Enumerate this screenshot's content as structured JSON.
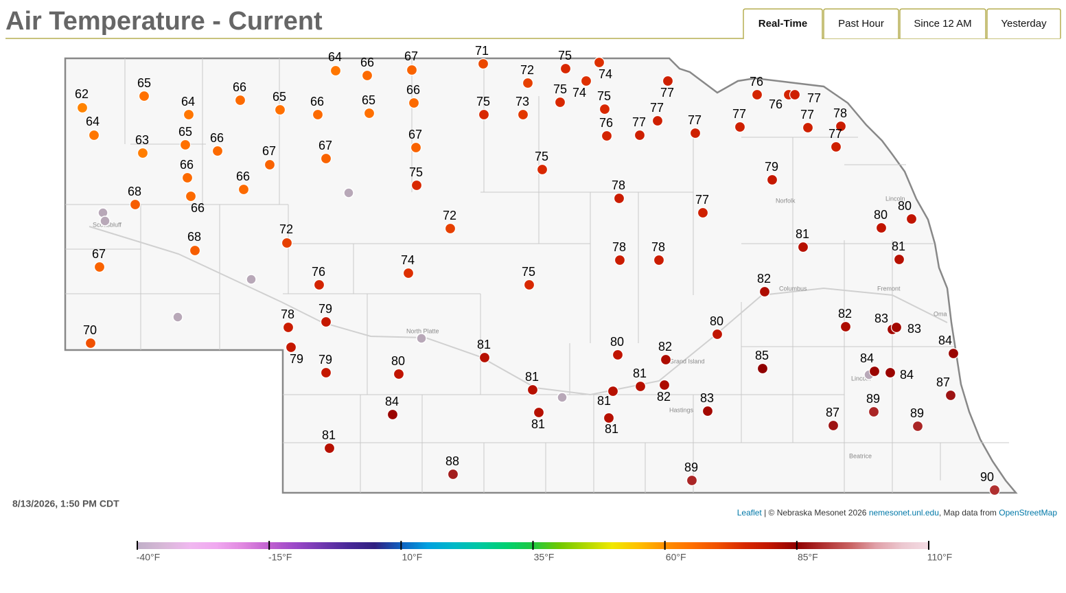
{
  "header": {
    "title": "Air Temperature - Current",
    "tabs": [
      "Real-Time",
      "Past Hour",
      "Since 12 AM",
      "Yesterday"
    ],
    "active_tab": 0
  },
  "map": {
    "values": [
      62,
      65,
      64,
      64,
      63,
      65,
      66,
      66,
      66,
      66,
      66,
      65,
      66,
      64,
      66,
      67,
      65,
      66,
      67,
      67,
      67,
      68,
      68,
      67,
      70,
      72,
      76,
      75,
      72,
      74,
      78,
      79,
      79,
      79,
      80,
      71,
      72,
      75,
      74,
      75,
      74,
      75,
      73,
      75,
      76,
      77,
      77,
      77,
      77,
      75,
      78,
      77,
      78,
      78,
      75,
      81,
      80,
      82,
      80,
      82,
      81,
      81,
      81,
      81,
      82,
      81,
      84,
      81,
      88,
      83,
      89,
      76,
      76,
      77,
      77,
      77,
      78,
      77,
      79,
      80,
      80,
      81,
      81,
      82,
      83,
      83,
      84,
      85,
      84,
      84,
      87,
      89,
      87,
      89,
      90
    ]
  },
  "timestamp": "8/13/2026, 1:50 PM CDT",
  "attribution": {
    "link": "Leaflet",
    "text": "| © Nebraska Mesonet 2026",
    "site": "nemesonet.unl.edu",
    "text2": ", Map data from",
    "osm": "OpenStreetMap"
  },
  "colorbar": {
    "ticks": [
      {
        "value": -40,
        "label": "-40°F"
      },
      {
        "value": -15,
        "label": "-15°F"
      },
      {
        "value": 10,
        "label": "10°F"
      },
      {
        "value": 35,
        "label": "35°F"
      },
      {
        "value": 60,
        "label": "60°F"
      },
      {
        "value": 85,
        "label": "85°F"
      },
      {
        "value": 110,
        "label": "110°F"
      }
    ],
    "colors": [
      "#c0b0c8",
      "#d8b8d8",
      "#f0b8f0",
      "#f0a8f0",
      "#e088e0",
      "#c060d0",
      "#9a48c8",
      "#7038b0",
      "#482898",
      "#302080",
      "#1060c0",
      "#00a0e0",
      "#00b8c8",
      "#00c8a0",
      "#00d070",
      "#20c840",
      "#70c800",
      "#b0d800",
      "#f0e800",
      "#ffc000",
      "#ff9000",
      "#ff7000",
      "#f05000",
      "#d82800",
      "#c01400",
      "#900000",
      "#b03030",
      "#c86060",
      "#e0a0a8",
      "#ecc8d0",
      "#f4dce4"
    ]
  }
}
